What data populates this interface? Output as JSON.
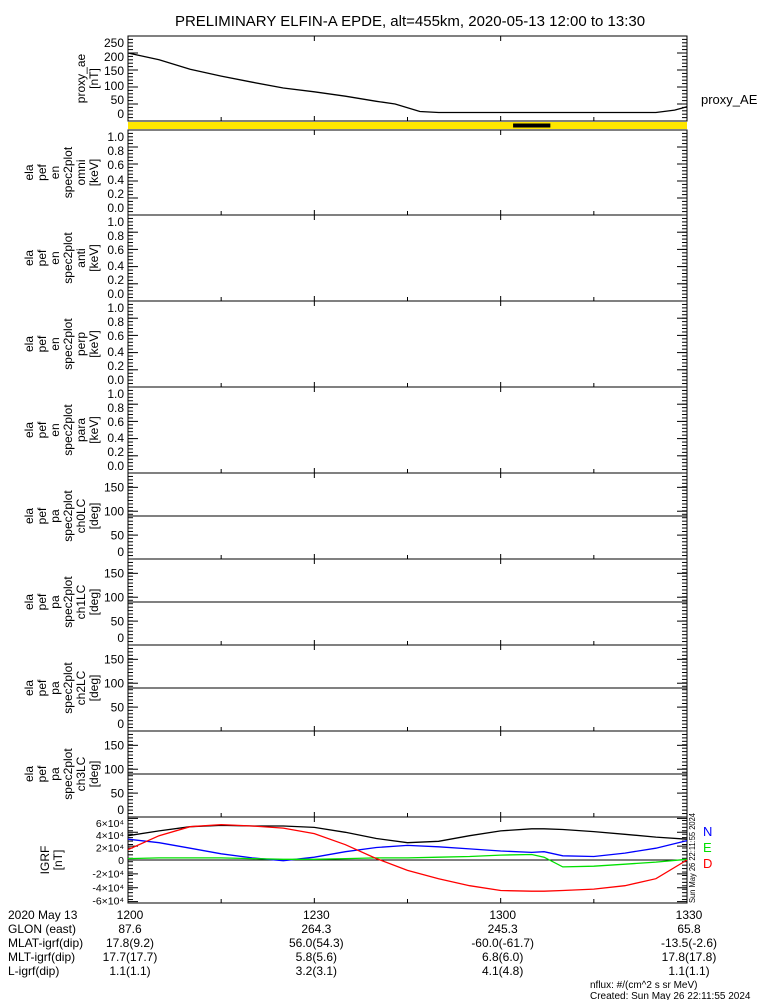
{
  "title": "PRELIMINARY ELFIN-A EPDE, alt=455km, 2020-05-13 12:00 to 13:30",
  "colors": {
    "yellow": "#ffe600",
    "black": "#000000",
    "red": "#ff0000",
    "blue": "#0000ff",
    "green": "#00e000"
  },
  "chart_data": [
    {
      "type": "line",
      "id": "proxy_ae",
      "ylabel": [
        "proxy_ae",
        "[nT]"
      ],
      "ylim": [
        0,
        250
      ],
      "yticks": [
        "0",
        "50",
        "100",
        "150",
        "200",
        "250"
      ],
      "ytick_values": [
        0,
        50,
        100,
        150,
        200,
        250
      ],
      "legend": "proxy_AE",
      "x_minutes": [
        0,
        5,
        10,
        15,
        20,
        25,
        30,
        35,
        40,
        43,
        47,
        50,
        85,
        88,
        90
      ],
      "values": [
        200,
        180,
        152,
        132,
        114,
        97,
        86,
        73,
        58,
        50,
        28,
        25,
        25,
        32,
        42
      ]
    },
    {
      "type": "bar",
      "id": "status_bar",
      "color": "#ffe600",
      "segments": [
        {
          "start_minutes": 62,
          "end_minutes": 68,
          "color": "#000000"
        }
      ]
    },
    {
      "type": "heatmap",
      "id": "en_omni",
      "ylabel": [
        "ela",
        "pef",
        "en",
        "spec2plot",
        "omni",
        "[keV]"
      ],
      "ylim": [
        0,
        1
      ],
      "yticks": [
        "0.0",
        "0.2",
        "0.4",
        "0.6",
        "0.8",
        "1.0"
      ],
      "ytick_values": [
        0,
        0.2,
        0.4,
        0.6,
        0.8,
        1.0
      ]
    },
    {
      "type": "heatmap",
      "id": "en_anti",
      "ylabel": [
        "ela",
        "pef",
        "en",
        "spec2plot",
        "anti",
        "[keV]"
      ],
      "ylim": [
        0,
        1
      ],
      "yticks": [
        "0.0",
        "0.2",
        "0.4",
        "0.6",
        "0.8",
        "1.0"
      ],
      "ytick_values": [
        0,
        0.2,
        0.4,
        0.6,
        0.8,
        1.0
      ]
    },
    {
      "type": "heatmap",
      "id": "en_perp",
      "ylabel": [
        "ela",
        "pef",
        "en",
        "spec2plot",
        "perp",
        "[keV]"
      ],
      "ylim": [
        0,
        1
      ],
      "yticks": [
        "0.0",
        "0.2",
        "0.4",
        "0.6",
        "0.8",
        "1.0"
      ],
      "ytick_values": [
        0,
        0.2,
        0.4,
        0.6,
        0.8,
        1.0
      ]
    },
    {
      "type": "heatmap",
      "id": "en_para",
      "ylabel": [
        "ela",
        "pef",
        "en",
        "spec2plot",
        "para",
        "[keV]"
      ],
      "ylim": [
        0,
        1
      ],
      "yticks": [
        "0.0",
        "0.2",
        "0.4",
        "0.6",
        "0.8",
        "1.0"
      ],
      "ytick_values": [
        0,
        0.2,
        0.4,
        0.6,
        0.8,
        1.0
      ]
    },
    {
      "type": "heatmap",
      "id": "pa_ch0",
      "ylabel": [
        "ela",
        "pef",
        "pa",
        "spec2plot",
        "ch0LC",
        "[deg]"
      ],
      "ylim": [
        0,
        180
      ],
      "yticks": [
        "0",
        "50",
        "100",
        "150"
      ],
      "ytick_values": [
        0,
        50,
        100,
        150
      ],
      "hline": 90
    },
    {
      "type": "heatmap",
      "id": "pa_ch1",
      "ylabel": [
        "ela",
        "pef",
        "pa",
        "spec2plot",
        "ch1LC",
        "[deg]"
      ],
      "ylim": [
        0,
        180
      ],
      "yticks": [
        "0",
        "50",
        "100",
        "150"
      ],
      "ytick_values": [
        0,
        50,
        100,
        150
      ],
      "hline": 90
    },
    {
      "type": "heatmap",
      "id": "pa_ch2",
      "ylabel": [
        "ela",
        "pef",
        "pa",
        "spec2plot",
        "ch2LC",
        "[deg]"
      ],
      "ylim": [
        0,
        180
      ],
      "yticks": [
        "0",
        "50",
        "100",
        "150"
      ],
      "ytick_values": [
        0,
        50,
        100,
        150
      ],
      "hline": 90
    },
    {
      "type": "heatmap",
      "id": "pa_ch3",
      "ylabel": [
        "ela",
        "pef",
        "pa",
        "spec2plot",
        "ch3LC",
        "[deg]"
      ],
      "ylim": [
        0,
        180
      ],
      "yticks": [
        "0",
        "50",
        "100",
        "150"
      ],
      "ytick_values": [
        0,
        50,
        100,
        150
      ],
      "hline": 90
    },
    {
      "type": "line",
      "id": "igrf",
      "ylabel": [
        "IGRF",
        "[nT]"
      ],
      "ylim": [
        -62000,
        62000
      ],
      "yticks": [
        "-6×10⁴",
        "-4×10⁴",
        "-2×10⁴",
        "0",
        "2×10⁴",
        "4×10⁴",
        "6×10⁴"
      ],
      "ytick_values": [
        -60000,
        -40000,
        -20000,
        0,
        20000,
        40000,
        60000
      ],
      "hline": 0,
      "legend": [
        "N",
        "E",
        "D"
      ],
      "x_minutes": [
        0,
        5,
        10,
        15,
        20,
        25,
        30,
        35,
        40,
        45,
        50,
        55,
        60,
        65,
        67,
        70,
        75,
        80,
        85,
        90
      ],
      "series": [
        {
          "name": "total",
          "color": "#000000",
          "values": [
            35000,
            42000,
            48000,
            50000,
            49000,
            49000,
            47000,
            40000,
            31000,
            25000,
            27000,
            35000,
            42000,
            45000,
            45000,
            44000,
            41000,
            37000,
            33000,
            30000
          ]
        },
        {
          "name": "N",
          "color": "#0000ff",
          "values": [
            30000,
            25000,
            17000,
            9000,
            3000,
            -1000,
            4000,
            12000,
            18000,
            21000,
            19000,
            16000,
            13000,
            11000,
            12000,
            6000,
            5000,
            10000,
            17000,
            28000
          ]
        },
        {
          "name": "E",
          "color": "#00e000",
          "values": [
            2000,
            3000,
            3000,
            3000,
            2000,
            1000,
            1000,
            2000,
            3000,
            3000,
            4000,
            5000,
            7000,
            8000,
            4000,
            -10000,
            -9000,
            -6000,
            -3000,
            1000
          ]
        },
        {
          "name": "D",
          "color": "#ff0000",
          "values": [
            15000,
            35000,
            48000,
            51000,
            49000,
            46000,
            38000,
            22000,
            2000,
            -15000,
            -27000,
            -37000,
            -44000,
            -45000,
            -45000,
            -44000,
            -42000,
            -37000,
            -27000,
            0
          ]
        }
      ]
    }
  ],
  "xaxis": {
    "tick_labels": [
      "1200",
      "1230",
      "1300",
      "1330"
    ],
    "tick_minutes": [
      0,
      30,
      60,
      90
    ],
    "range_minutes": [
      0,
      90
    ]
  },
  "footer": {
    "rows": [
      {
        "label": "2020 May 13",
        "values": [
          "1200",
          "1230",
          "1300",
          "1330"
        ]
      },
      {
        "label": "GLON (east)",
        "values": [
          "87.6",
          "264.3",
          "245.3",
          "65.8"
        ]
      },
      {
        "label": "MLAT-igrf(dip)",
        "values": [
          "17.8(9.2)",
          "56.0(54.3)",
          "-60.0(-61.7)",
          "-13.5(-2.6)"
        ]
      },
      {
        "label": "MLT-igrf(dip)",
        "values": [
          "17.7(17.7)",
          "5.8(5.6)",
          "6.8(6.0)",
          "17.8(17.8)"
        ]
      },
      {
        "label": "L-igrf(dip)",
        "values": [
          "1.1(1.1)",
          "3.2(3.1)",
          "4.1(4.8)",
          "1.1(1.1)"
        ]
      }
    ],
    "units_note": "nflux: #/(cm^2 s sr MeV)",
    "created": "Created: Sun May 26 22:11:55 2024",
    "side_stamp": "Sun May 26 22:11:55 2024"
  }
}
